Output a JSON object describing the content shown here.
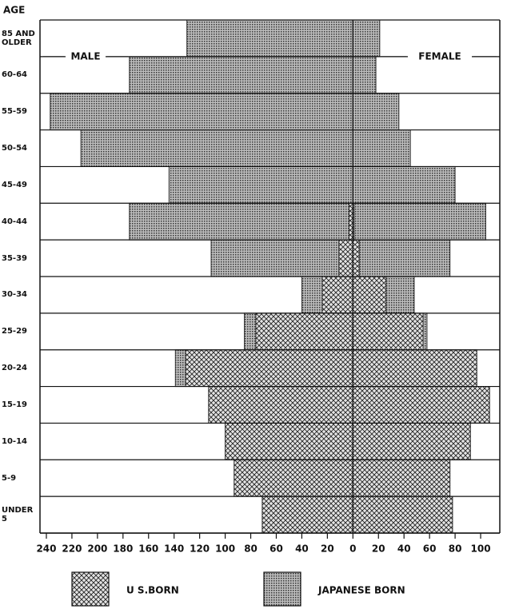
{
  "chart_data": {
    "type": "pyramid",
    "y_label": "AGE",
    "left_label": "MALE",
    "right_label": "FEMALE",
    "categories": [
      "85 AND OLDER",
      "60-64",
      "55-59",
      "50-54",
      "45-49",
      "40-44",
      "35-39",
      "30-34",
      "25-29",
      "20-24",
      "15-19",
      "10-14",
      "5-9",
      "UNDER 5"
    ],
    "series": [
      {
        "name": "U S.BORN",
        "pattern": "crosshatch",
        "color": "#222222",
        "male": [
          0,
          0,
          0,
          0,
          0,
          3,
          11,
          24,
          76,
          131,
          113,
          100,
          93,
          71
        ],
        "female": [
          0,
          0,
          0,
          0,
          0,
          1,
          5,
          26,
          55,
          97,
          107,
          92,
          76,
          78
        ]
      },
      {
        "name": "JAPANESE BORN",
        "pattern": "dots",
        "color": "#333333",
        "male": [
          130,
          175,
          237,
          213,
          144,
          172,
          100,
          16,
          9,
          8,
          0,
          0,
          0,
          0
        ],
        "female": [
          21,
          18,
          36,
          45,
          80,
          103,
          71,
          22,
          3,
          0,
          0,
          0,
          0,
          0
        ]
      }
    ],
    "xlim": [
      -245,
      115
    ],
    "xticks": [
      {
        "value": -240,
        "label": "240"
      },
      {
        "value": -220,
        "label": "220"
      },
      {
        "value": -200,
        "label": "200"
      },
      {
        "value": -180,
        "label": "180"
      },
      {
        "value": -160,
        "label": "160"
      },
      {
        "value": -140,
        "label": "140"
      },
      {
        "value": -120,
        "label": "120"
      },
      {
        "value": -100,
        "label": "100"
      },
      {
        "value": -80,
        "label": "80"
      },
      {
        "value": -60,
        "label": "60"
      },
      {
        "value": -40,
        "label": "40"
      },
      {
        "value": -20,
        "label": "20"
      },
      0,
      20,
      40,
      60,
      80,
      100
    ]
  }
}
